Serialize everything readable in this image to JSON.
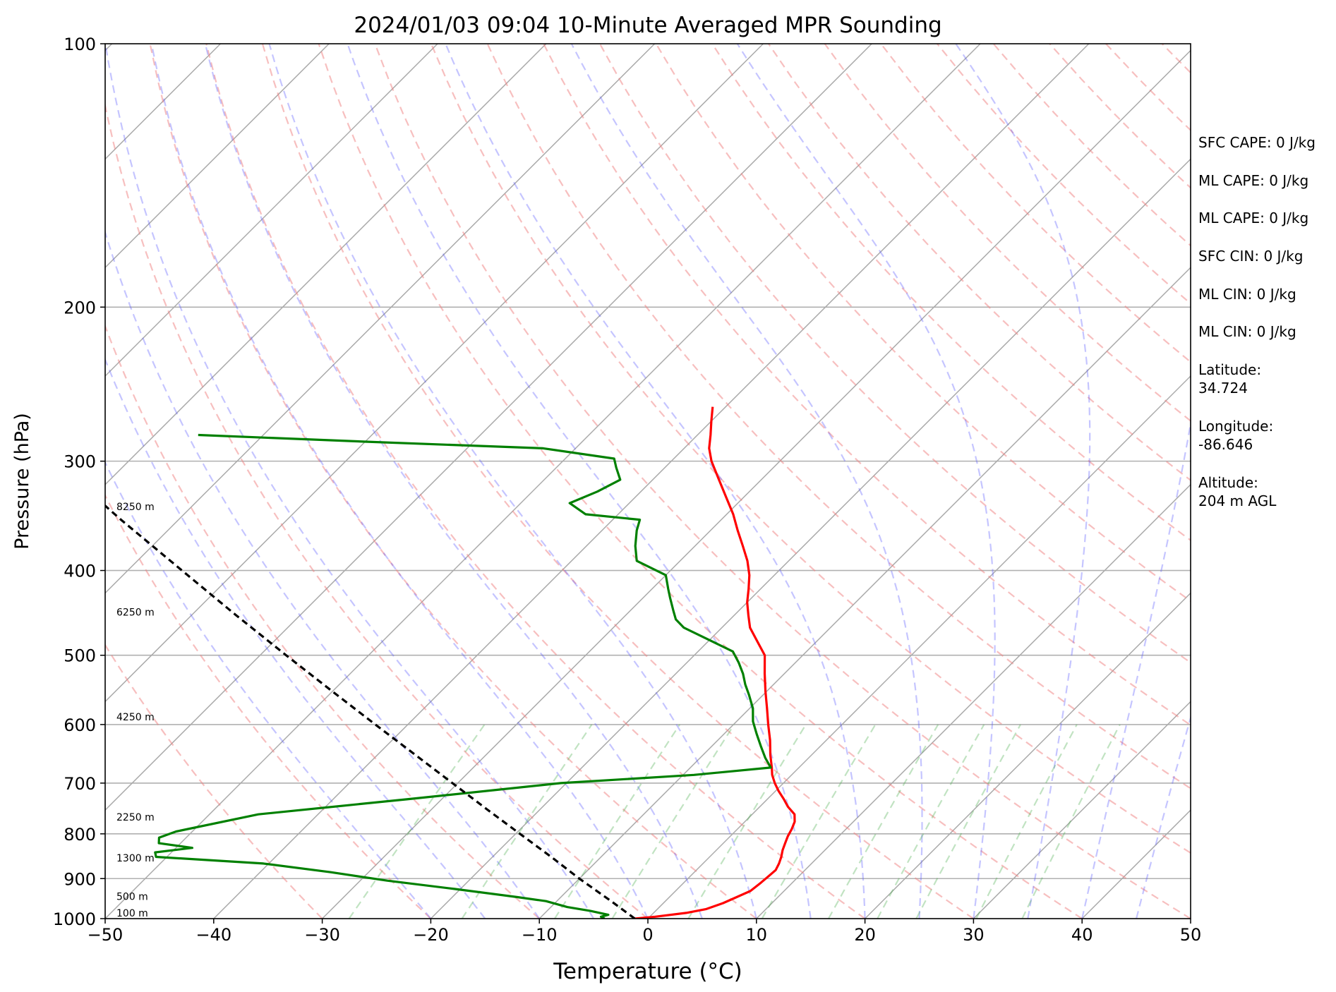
{
  "chart_data": {
    "type": "skew-t",
    "title": "2024/01/03 09:04 10-Minute Averaged MPR Sounding",
    "xlabel": "Temperature (°C)",
    "ylabel": "Pressure (hPa)",
    "xlim": [
      -50,
      50
    ],
    "ylim": [
      1000,
      100
    ],
    "y_scale": "log",
    "x_ticks": [
      -50,
      -40,
      -30,
      -20,
      -10,
      0,
      10,
      20,
      30,
      40,
      50
    ],
    "y_ticks": [
      1000,
      900,
      800,
      700,
      600,
      500,
      400,
      300,
      200,
      100
    ],
    "grid": true,
    "skew_deg": 45,
    "background_lines": {
      "isotherms": "gray solid",
      "dry_adiabats": "light red dashed",
      "moist_adiabats": "light blue dashed",
      "mixing_ratio": "light green dashed"
    },
    "height_labels": [
      {
        "p": 1000,
        "label": "100 m"
      },
      {
        "p": 957,
        "label": "500 m"
      },
      {
        "p": 865,
        "label": "1300 m"
      },
      {
        "p": 777,
        "label": "2250 m"
      },
      {
        "p": 597,
        "label": "4250 m"
      },
      {
        "p": 453,
        "label": "6250 m"
      },
      {
        "p": 343,
        "label": "8250 m"
      }
    ],
    "series": [
      {
        "color": "#ff0000",
        "points": [
          [
            1000,
            -1.2
          ],
          [
            995,
            0.5
          ],
          [
            985,
            3.0
          ],
          [
            975,
            4.5
          ],
          [
            960,
            5.5
          ],
          [
            945,
            6.2
          ],
          [
            930,
            6.9
          ],
          [
            910,
            7.1
          ],
          [
            895,
            7.2
          ],
          [
            880,
            7.3
          ],
          [
            865,
            7.0
          ],
          [
            850,
            6.6
          ],
          [
            835,
            6.1
          ],
          [
            820,
            5.7
          ],
          [
            805,
            5.3
          ],
          [
            790,
            5.0
          ],
          [
            775,
            4.6
          ],
          [
            760,
            3.9
          ],
          [
            745,
            2.6
          ],
          [
            730,
            1.5
          ],
          [
            715,
            0.3
          ],
          [
            700,
            -0.8
          ],
          [
            685,
            -1.8
          ],
          [
            672,
            -2.5
          ],
          [
            650,
            -3.8
          ],
          [
            625,
            -5.2
          ],
          [
            600,
            -6.8
          ],
          [
            575,
            -8.4
          ],
          [
            550,
            -10.1
          ],
          [
            525,
            -11.8
          ],
          [
            500,
            -13.5
          ],
          [
            480,
            -15.7
          ],
          [
            465,
            -17.4
          ],
          [
            450,
            -18.7
          ],
          [
            435,
            -20.0
          ],
          [
            420,
            -21.1
          ],
          [
            405,
            -22.3
          ],
          [
            390,
            -23.8
          ],
          [
            375,
            -25.6
          ],
          [
            360,
            -27.5
          ],
          [
            345,
            -29.4
          ],
          [
            330,
            -31.6
          ],
          [
            315,
            -33.9
          ],
          [
            300,
            -36.3
          ],
          [
            290,
            -37.7
          ],
          [
            280,
            -38.8
          ],
          [
            270,
            -40.0
          ],
          [
            260,
            -41.2
          ]
        ]
      },
      {
        "color": "#008000",
        "points": [
          [
            1000,
            -4.0
          ],
          [
            995,
            -4.5
          ],
          [
            990,
            -4.0
          ],
          [
            980,
            -6.0
          ],
          [
            970,
            -8.5
          ],
          [
            955,
            -11.0
          ],
          [
            945,
            -14.0
          ],
          [
            925,
            -20.5
          ],
          [
            905,
            -27.5
          ],
          [
            885,
            -33.5
          ],
          [
            865,
            -40.5
          ],
          [
            850,
            -51.0
          ],
          [
            840,
            -51.5
          ],
          [
            830,
            -48.5
          ],
          [
            820,
            -52.0
          ],
          [
            808,
            -52.5
          ],
          [
            795,
            -51.5
          ],
          [
            760,
            -45.5
          ],
          [
            730,
            -33.0
          ],
          [
            700,
            -20.5
          ],
          [
            685,
            -9.0
          ],
          [
            672,
            -2.6
          ],
          [
            655,
            -4.0
          ],
          [
            635,
            -5.5
          ],
          [
            615,
            -7.0
          ],
          [
            595,
            -8.5
          ],
          [
            575,
            -9.7
          ],
          [
            555,
            -11.3
          ],
          [
            540,
            -12.6
          ],
          [
            525,
            -13.8
          ],
          [
            510,
            -15.2
          ],
          [
            495,
            -16.8
          ],
          [
            480,
            -20.1
          ],
          [
            465,
            -23.5
          ],
          [
            455,
            -25.0
          ],
          [
            445,
            -26.0
          ],
          [
            430,
            -27.5
          ],
          [
            420,
            -28.5
          ],
          [
            405,
            -30.0
          ],
          [
            390,
            -34.0
          ],
          [
            375,
            -35.5
          ],
          [
            360,
            -36.8
          ],
          [
            350,
            -37.5
          ],
          [
            345,
            -43.0
          ],
          [
            335,
            -45.5
          ],
          [
            325,
            -44.0
          ],
          [
            315,
            -43.0
          ],
          [
            305,
            -44.5
          ],
          [
            298,
            -45.5
          ],
          [
            290,
            -53.0
          ],
          [
            285,
            -70.0
          ],
          [
            280,
            -86.0
          ]
        ]
      },
      {
        "color": "#000000",
        "dashed": true,
        "points": [
          [
            1000,
            -1.2
          ],
          [
            955,
            -5.0
          ],
          [
            900,
            -10.0
          ],
          [
            850,
            -14.6
          ],
          [
            800,
            -19.6
          ],
          [
            750,
            -24.9
          ],
          [
            700,
            -30.5
          ],
          [
            650,
            -36.5
          ],
          [
            600,
            -43.0
          ],
          [
            550,
            -50.0
          ],
          [
            500,
            -57.6
          ],
          [
            450,
            -65.9
          ],
          [
            400,
            -75.0
          ],
          [
            350,
            -85.3
          ],
          [
            300,
            -96.8
          ]
        ]
      }
    ]
  },
  "side_panel": {
    "sfc_cape": "SFC CAPE: 0 J/kg",
    "ml_cape_1": "ML CAPE: 0 J/kg",
    "ml_cape_2": "ML CAPE: 0 J/kg",
    "sfc_cin": "SFC CIN: 0 J/kg",
    "ml_cin_1": "ML CIN: 0 J/kg",
    "ml_cin_2": "ML CIN: 0 J/kg",
    "latitude_label": "Latitude:",
    "latitude_value": "34.724",
    "longitude_label": "Longitude:",
    "longitude_value": "-86.646",
    "altitude_label": "Altitude:",
    "altitude_value": "204 m AGL"
  }
}
